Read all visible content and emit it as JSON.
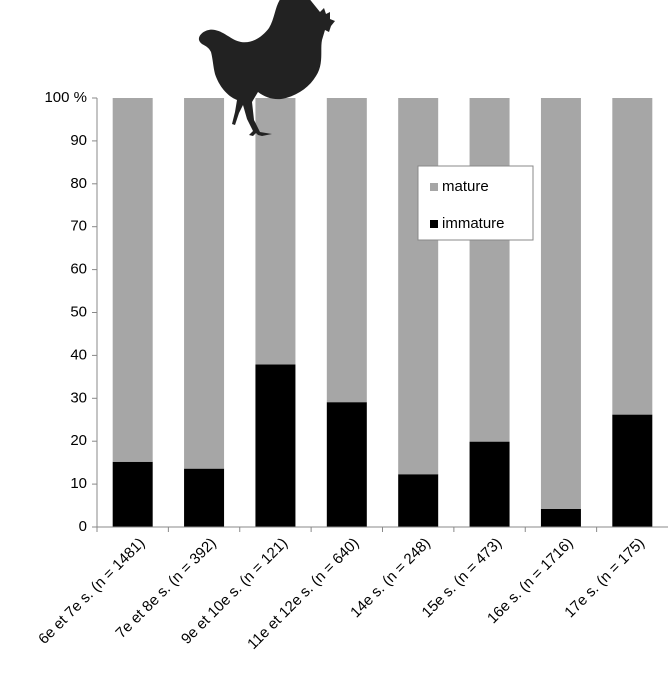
{
  "chart_data": {
    "type": "stacked-bar",
    "categories": [
      "6e et 7e s. (n = 1481)",
      "7e et 8e s. (n = 392)",
      "9e et 10e s. (n = 121)",
      "11e et 12e s. (n = 640)",
      "14e s. (n = 248)",
      "15e s. (n = 473)",
      "16e s. (n = 1716)",
      "17e s. (n = 175)"
    ],
    "series": [
      {
        "name": "immature",
        "color": "#000000",
        "values": [
          15.2,
          13.6,
          37.9,
          29.1,
          12.3,
          19.9,
          4.2,
          26.2
        ]
      },
      {
        "name": "mature",
        "color": "#a6a6a6",
        "values": [
          84.8,
          86.4,
          62.1,
          70.9,
          87.7,
          80.1,
          95.8,
          73.8
        ]
      }
    ],
    "ylim": [
      0,
      100
    ],
    "yticks": [
      0,
      10,
      20,
      30,
      40,
      50,
      60,
      70,
      80,
      90,
      {
        "value": 100,
        "label": "100 %"
      }
    ],
    "legend": "upper-right"
  }
}
